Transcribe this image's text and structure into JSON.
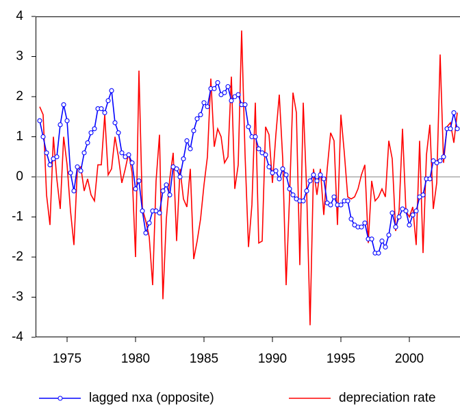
{
  "chart_data": {
    "type": "line",
    "x": [
      1973,
      1973.25,
      1973.5,
      1973.75,
      1974,
      1974.25,
      1974.5,
      1974.75,
      1975,
      1975.25,
      1975.5,
      1975.75,
      1976,
      1976.25,
      1976.5,
      1976.75,
      1977,
      1977.25,
      1977.5,
      1977.75,
      1978,
      1978.25,
      1978.5,
      1978.75,
      1979,
      1979.25,
      1979.5,
      1979.75,
      1980,
      1980.25,
      1980.5,
      1980.75,
      1981,
      1981.25,
      1981.5,
      1981.75,
      1982,
      1982.25,
      1982.5,
      1982.75,
      1983,
      1983.25,
      1983.5,
      1983.75,
      1984,
      1984.25,
      1984.5,
      1984.75,
      1985,
      1985.25,
      1985.5,
      1985.75,
      1986,
      1986.25,
      1986.5,
      1986.75,
      1987,
      1987.25,
      1987.5,
      1987.75,
      1988,
      1988.25,
      1988.5,
      1988.75,
      1989,
      1989.25,
      1989.5,
      1989.75,
      1990,
      1990.25,
      1990.5,
      1990.75,
      1991,
      1991.25,
      1991.5,
      1991.75,
      1992,
      1992.25,
      1992.5,
      1992.75,
      1993,
      1993.25,
      1993.5,
      1993.75,
      1994,
      1994.25,
      1994.5,
      1994.75,
      1995,
      1995.25,
      1995.5,
      1995.75,
      1996,
      1996.25,
      1996.5,
      1996.75,
      1997,
      1997.25,
      1997.5,
      1997.75,
      1998,
      1998.25,
      1998.5,
      1998.75,
      1999,
      1999.25,
      1999.5,
      1999.75,
      2000,
      2000.25,
      2000.5,
      2000.75,
      2001,
      2001.25,
      2001.5,
      2001.75,
      2002,
      2002.25,
      2002.5,
      2002.75,
      2003,
      2003.25,
      2003.5
    ],
    "series": [
      {
        "name": "lagged nxa (opposite)",
        "color": "#0000ff",
        "marker": true,
        "values": [
          1.4,
          1.0,
          0.6,
          0.3,
          0.45,
          0.5,
          1.3,
          1.8,
          1.4,
          0.1,
          -0.35,
          0.25,
          0.15,
          0.6,
          0.85,
          1.1,
          1.2,
          1.7,
          1.7,
          1.6,
          1.9,
          2.15,
          1.35,
          1.1,
          0.6,
          0.5,
          0.55,
          0.35,
          -0.3,
          -0.1,
          -0.85,
          -1.4,
          -1.15,
          -0.85,
          -0.85,
          -0.9,
          -0.35,
          -0.2,
          -0.45,
          0.25,
          0.2,
          0.0,
          0.45,
          0.9,
          0.7,
          1.15,
          1.45,
          1.55,
          1.85,
          1.75,
          2.2,
          2.2,
          2.35,
          2.05,
          2.1,
          2.25,
          1.9,
          2.0,
          2.05,
          1.8,
          1.8,
          1.25,
          1.0,
          1.0,
          0.7,
          0.6,
          0.55,
          0.25,
          0.1,
          0.15,
          -0.05,
          0.2,
          0.05,
          -0.3,
          -0.45,
          -0.55,
          -0.6,
          -0.6,
          -0.35,
          -0.1,
          0.05,
          -0.1,
          0.05,
          -0.05,
          -0.65,
          -0.7,
          -0.5,
          -0.7,
          -0.7,
          -0.6,
          -0.6,
          -1.05,
          -1.2,
          -1.25,
          -1.25,
          -1.15,
          -1.55,
          -1.55,
          -1.9,
          -1.9,
          -1.6,
          -1.75,
          -1.45,
          -0.9,
          -1.25,
          -1.0,
          -0.8,
          -0.85,
          -1.2,
          -0.95,
          -0.85,
          -0.5,
          -0.45,
          -0.05,
          -0.05,
          0.4,
          0.35,
          0.4,
          0.5,
          1.2,
          1.2,
          1.6,
          1.2
        ]
      },
      {
        "name": "depreciation rate",
        "color": "#ff0000",
        "marker": false,
        "values": [
          1.75,
          1.55,
          -0.45,
          -1.2,
          1.0,
          -0.05,
          -0.8,
          1.0,
          0.3,
          -0.85,
          -1.7,
          0.2,
          0.25,
          -0.35,
          -0.05,
          -0.45,
          -0.6,
          0.3,
          0.3,
          1.55,
          0.05,
          0.2,
          1.0,
          0.5,
          -0.15,
          0.2,
          0.6,
          0.1,
          -2.0,
          2.65,
          -0.8,
          -1.1,
          -1.5,
          -2.7,
          -0.1,
          1.05,
          -3.05,
          -1.05,
          -0.05,
          0.6,
          -1.6,
          0.2,
          -0.55,
          -0.75,
          0.2,
          -2.05,
          -1.6,
          -1.05,
          -0.2,
          0.5,
          2.45,
          0.75,
          1.2,
          1.0,
          0.35,
          0.5,
          2.5,
          -0.3,
          0.3,
          3.65,
          0.55,
          -1.75,
          -0.7,
          1.85,
          -1.65,
          -1.6,
          1.25,
          1.05,
          -0.15,
          1.05,
          2.05,
          0.45,
          -2.7,
          -0.5,
          2.1,
          1.6,
          -2.2,
          1.85,
          -0.35,
          -3.7,
          0.2,
          -0.45,
          0.2,
          -0.95,
          0.2,
          1.1,
          0.9,
          -1.2,
          1.55,
          0.6,
          -0.5,
          -0.55,
          -0.5,
          -0.3,
          0.05,
          0.3,
          -1.65,
          -0.1,
          -0.6,
          -0.5,
          -0.3,
          -0.5,
          0.9,
          0.45,
          -1.35,
          -0.85,
          1.2,
          -0.85,
          -1.0,
          -0.75,
          -1.7,
          0.9,
          -1.9,
          0.55,
          1.3,
          -0.8,
          -0.15,
          3.05,
          0.35,
          1.25,
          1.35,
          0.85,
          1.6
        ]
      }
    ],
    "xlim": [
      1972.7,
      2003.7
    ],
    "xticks": [
      1975,
      1980,
      1985,
      1990,
      1995,
      2000
    ],
    "ylim": [
      -4,
      4
    ],
    "yticks": [
      -4,
      -3,
      -2,
      -1,
      0,
      1,
      2,
      3,
      4
    ],
    "zero_line": true,
    "legend": "bottom"
  }
}
